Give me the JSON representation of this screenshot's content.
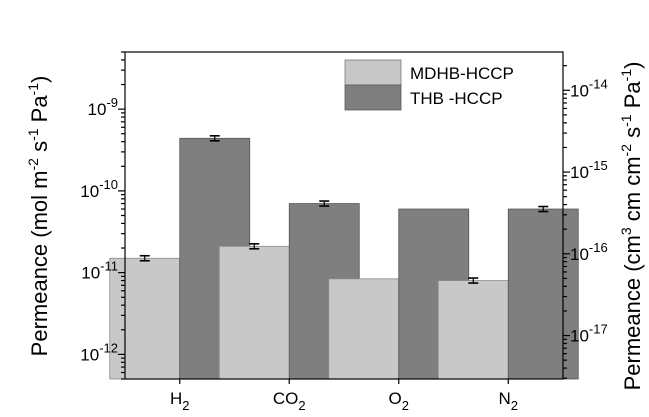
{
  "chart_data": {
    "type": "bar",
    "y_scale": "log",
    "categories": [
      {
        "base": "H",
        "sub": "2"
      },
      {
        "base": "CO",
        "sub": "2"
      },
      {
        "base": "O",
        "sub": "2"
      },
      {
        "base": "N",
        "sub": "2"
      }
    ],
    "series": [
      {
        "name": "MDHB-HCCP",
        "color": "#c8c8c8",
        "values": [
          1.5e-11,
          2.1e-11,
          8.4e-12,
          8e-12
        ],
        "errors": [
          true,
          true,
          false,
          true
        ]
      },
      {
        "name": "THB -HCCP",
        "color": "#7f7f7f",
        "values": [
          4.4e-10,
          7e-11,
          6e-11,
          6e-11
        ],
        "errors": [
          true,
          true,
          false,
          true
        ]
      }
    ],
    "left_axis": {
      "title": {
        "base": "Permeance (mol m",
        "sup1": "-2",
        "mid1": " s",
        "sup2": "-1",
        "mid2": " Pa",
        "sup3": "-1",
        "end": ")"
      },
      "range": [
        5e-13,
        5e-09
      ],
      "ticks": [
        {
          "value": 1e-12,
          "base": "10",
          "exp": "-12"
        },
        {
          "value": 1e-11,
          "base": "10",
          "exp": "-11"
        },
        {
          "value": 1e-10,
          "base": "10",
          "exp": "-10"
        },
        {
          "value": 1e-09,
          "base": "10",
          "exp": "-9"
        }
      ]
    },
    "right_axis": {
      "title": {
        "base": "Permeance (cm",
        "sup1": "3",
        "mid1": " cm cm",
        "sup2": "-2",
        "mid2": " s",
        "sup3": "-1",
        "mid3": " Pa",
        "sup4": "-1",
        "end": ")"
      },
      "ticks": [
        {
          "exp_value": -17,
          "base": "10",
          "exp": "-17"
        },
        {
          "exp_value": -16,
          "base": "10",
          "exp": "-16"
        },
        {
          "exp_value": -15,
          "base": "10",
          "exp": "-15"
        },
        {
          "exp_value": -14,
          "base": "10",
          "exp": "-14"
        }
      ]
    },
    "legend_position": "top-right",
    "grid": false
  }
}
